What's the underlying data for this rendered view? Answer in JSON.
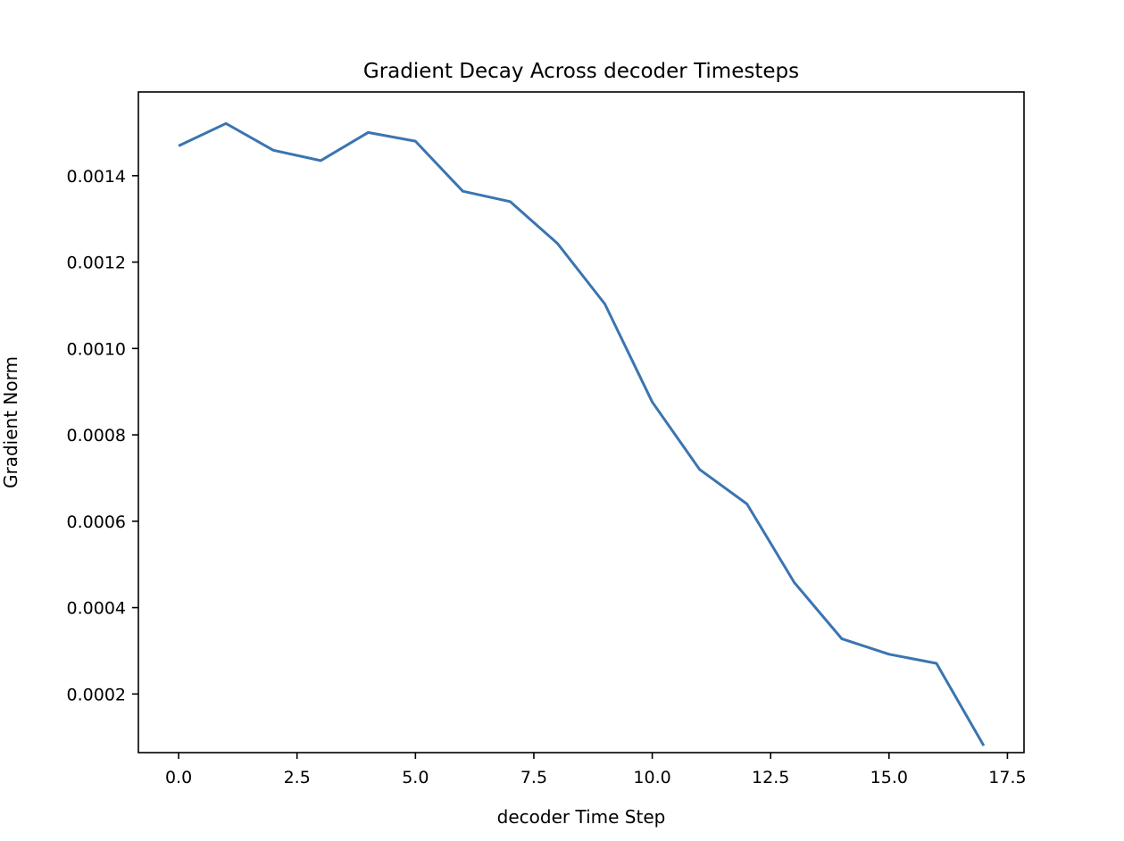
{
  "chart_data": {
    "type": "line",
    "title": "Gradient Decay Across decoder Timesteps",
    "xlabel": "decoder Time Step",
    "ylabel": "Gradient Norm",
    "xlim": [
      -0.85,
      17.85
    ],
    "ylim": [
      6.43e-05,
      0.0015939
    ],
    "x_ticks": [
      0,
      2.5,
      5,
      7.5,
      10,
      12.5,
      15,
      17.5
    ],
    "x_tick_labels": [
      "0.0",
      "2.5",
      "5.0",
      "7.5",
      "10.0",
      "12.5",
      "15.0",
      "17.5"
    ],
    "y_ticks": [
      0.0002,
      0.0004,
      0.0006,
      0.0008,
      0.001,
      0.0012,
      0.0014
    ],
    "y_tick_labels": [
      "0.0002",
      "0.0004",
      "0.0006",
      "0.0008",
      "0.0010",
      "0.0012",
      "0.0014"
    ],
    "grid": false,
    "series": [
      {
        "color": "#3a75b0",
        "x": [
          0,
          1,
          2,
          3,
          4,
          5,
          6,
          7,
          8,
          9,
          10,
          11,
          12,
          13,
          14,
          15,
          16,
          17
        ],
        "y": [
          0.001469,
          0.001521,
          0.001459,
          0.001435,
          0.0015,
          0.00148,
          0.001364,
          0.00134,
          0.001243,
          0.001103,
          0.000876,
          0.00072,
          0.00064,
          0.000458,
          0.000328,
          0.000292,
          0.000271,
          8.05e-05
        ]
      }
    ]
  }
}
